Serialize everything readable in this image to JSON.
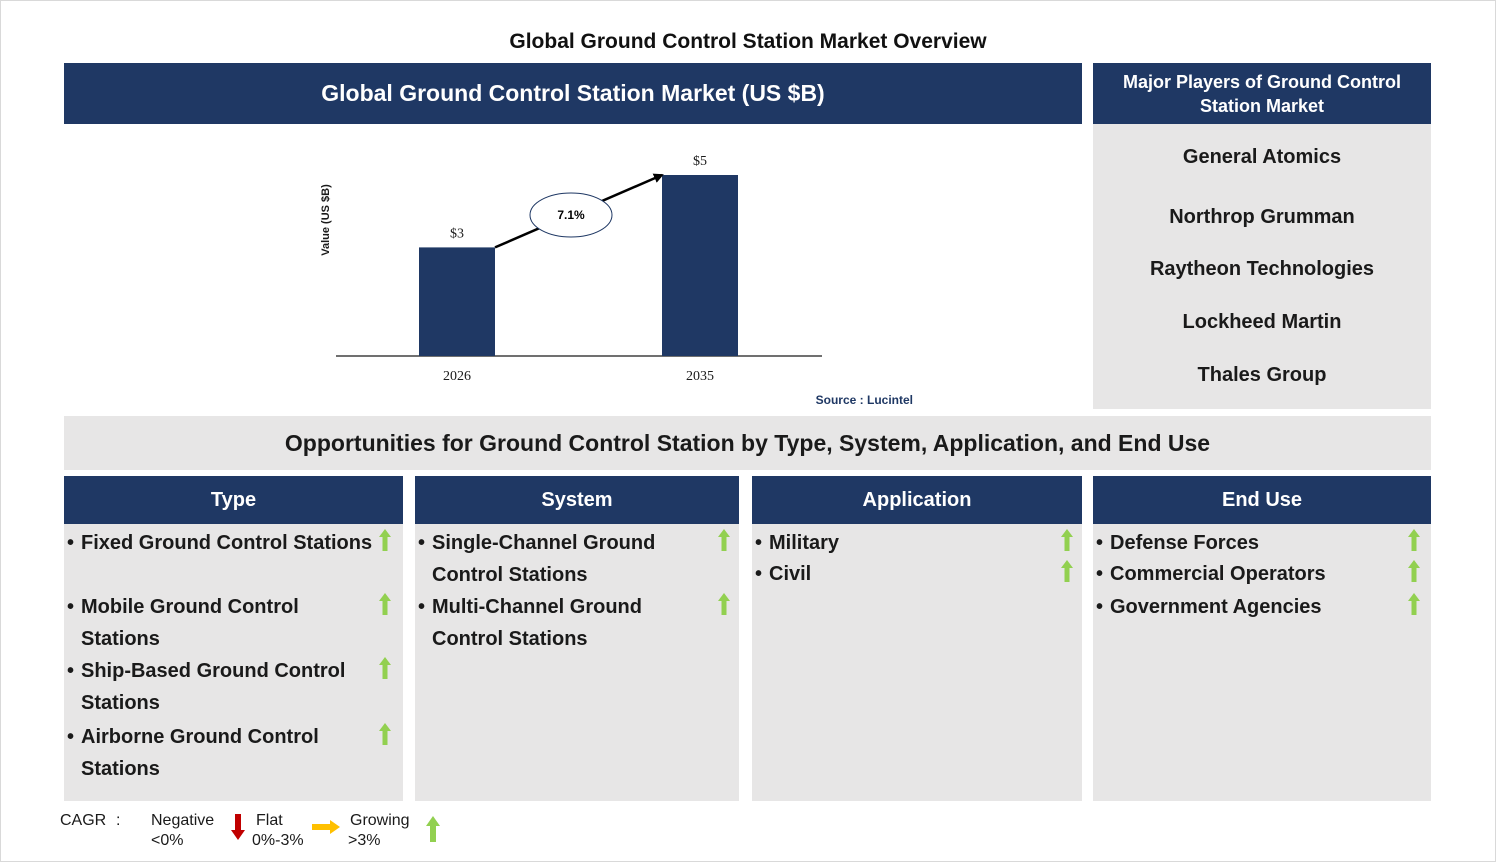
{
  "page_title": "Global Ground Control Station Market Overview",
  "chart_header": "Global Ground Control Station Market (US $B)",
  "players": {
    "header": "Major Players of Ground Control Station Market",
    "items": [
      "General Atomics",
      "Northrop Grumman",
      "Raytheon Technologies",
      "Lockheed Martin",
      "Thales Group"
    ]
  },
  "chart_data": {
    "type": "bar",
    "categories": [
      "2026",
      "2035"
    ],
    "values": [
      3,
      5
    ],
    "value_labels": [
      "$3",
      "$5"
    ],
    "ylabel": "Value (US $B)",
    "cagr_label": "7.1%",
    "source": "Source : Lucintel",
    "color": "#1f3864"
  },
  "opportunities": {
    "title": "Opportunities for Ground Control Station by Type, System, Application, and End Use",
    "columns": [
      {
        "header": "Type",
        "items": [
          {
            "text": "Fixed Ground Control Stations",
            "trend": "growing"
          },
          {
            "text": "Mobile Ground Control Stations",
            "trend": "growing"
          },
          {
            "text": "Ship-Based Ground Control Stations",
            "trend": "growing"
          },
          {
            "text": "Airborne Ground Control Stations",
            "trend": "growing"
          }
        ]
      },
      {
        "header": "System",
        "items": [
          {
            "text": "Single-Channel Ground Control Stations",
            "trend": "growing"
          },
          {
            "text": "Multi-Channel Ground Control Stations",
            "trend": "growing"
          }
        ]
      },
      {
        "header": "Application",
        "items": [
          {
            "text": "Military",
            "trend": "growing"
          },
          {
            "text": "Civil",
            "trend": "growing"
          }
        ]
      },
      {
        "header": "End Use",
        "items": [
          {
            "text": "Defense Forces",
            "trend": "growing"
          },
          {
            "text": "Commercial Operators",
            "trend": "growing"
          },
          {
            "text": "Government Agencies",
            "trend": "growing"
          }
        ]
      }
    ]
  },
  "legend": {
    "label": "CAGR",
    "separator": ":",
    "negative": "Negative",
    "negative_range": "<0%",
    "flat": "Flat",
    "flat_range": "0%-3%",
    "growing": "Growing",
    "growing_range": ">3%",
    "colors": {
      "negative": "#c00000",
      "flat": "#ffc000",
      "growing": "#92d050"
    }
  }
}
